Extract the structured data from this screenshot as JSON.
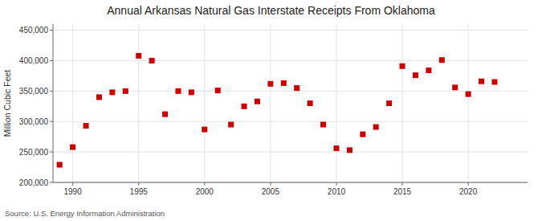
{
  "chart_data": {
    "type": "scatter",
    "title": "Annual Arkansas Natural Gas Interstate Receipts From Oklahoma",
    "y_label": "Million Cubic Feet",
    "annotations": [
      "Source: U.S. Energy Information Administration"
    ],
    "x": [
      1989,
      1990,
      1991,
      1992,
      1993,
      1994,
      1995,
      1996,
      1997,
      1998,
      1999,
      2000,
      2001,
      2002,
      2003,
      2004,
      2005,
      2006,
      2007,
      2008,
      2009,
      2010,
      2011,
      2012,
      2013,
      2014,
      2015,
      2016,
      2017,
      2018,
      2019,
      2020,
      2021,
      2022
    ],
    "values": [
      229000,
      258000,
      293000,
      340000,
      348000,
      350000,
      408000,
      400000,
      312000,
      350000,
      348000,
      287000,
      351000,
      295000,
      325000,
      333000,
      362000,
      363000,
      355000,
      330000,
      295000,
      256000,
      253000,
      279000,
      291000,
      330000,
      391000,
      376000,
      384000,
      401000,
      356000,
      345000,
      366000,
      365000
    ],
    "color": "#cc0000",
    "marker": "square",
    "xlim": [
      1988.5,
      2024.5
    ],
    "ylim": [
      200000,
      460000
    ],
    "xticks": [
      1990,
      1995,
      2000,
      2005,
      2010,
      2015,
      2020
    ],
    "yticks": [
      {
        "value": 200000,
        "label": "200,000"
      },
      {
        "value": 250000,
        "label": "250,000"
      },
      {
        "value": 300000,
        "label": "300,000"
      },
      {
        "value": 350000,
        "label": "350,000"
      },
      {
        "value": 400000,
        "label": "400,000"
      },
      {
        "value": 450000,
        "label": "450,000"
      }
    ],
    "grid": true
  }
}
